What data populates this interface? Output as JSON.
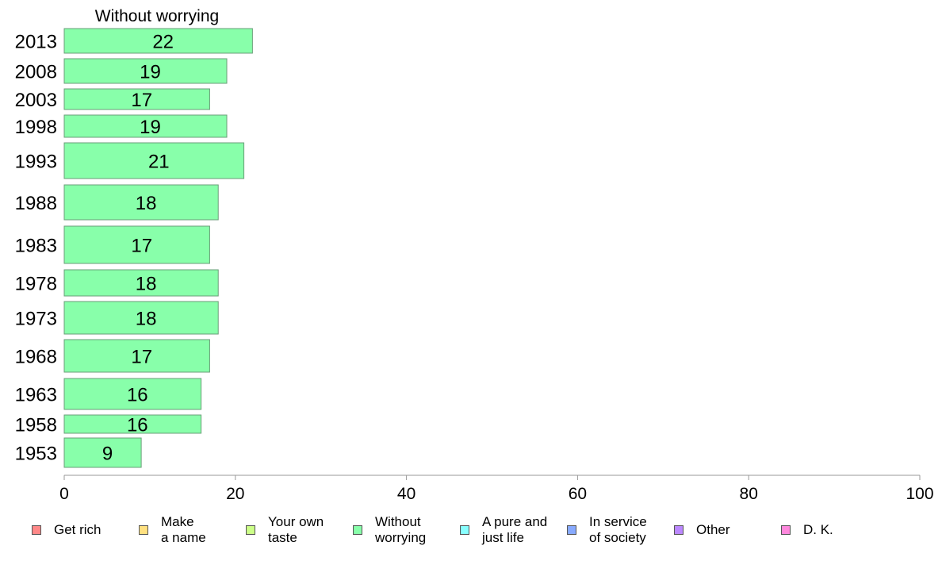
{
  "chart_data": {
    "type": "bar",
    "orientation": "horizontal",
    "title": "Without worrying",
    "categories": [
      "2013",
      "2008",
      "2003",
      "1998",
      "1993",
      "1988",
      "1983",
      "1978",
      "1973",
      "1968",
      "1963",
      "1958",
      "1953"
    ],
    "values": [
      22,
      19,
      17,
      19,
      21,
      18,
      17,
      18,
      18,
      17,
      16,
      16,
      9
    ],
    "xlim": [
      0,
      100
    ],
    "xticks": [
      "0",
      "20",
      "40",
      "60",
      "80",
      "100"
    ],
    "bar_color": "#88ffaa",
    "grid": false,
    "legend_position": "bottom",
    "legend": [
      {
        "label": "Get rich",
        "color": "#ff8888"
      },
      {
        "label": "Make\na name",
        "color": "#ffe080"
      },
      {
        "label": "Your own\ntaste",
        "color": "#ccff88"
      },
      {
        "label": "Without\nworrying",
        "color": "#88ffaa"
      },
      {
        "label": "A pure and\njust life",
        "color": "#88ffff"
      },
      {
        "label": "In service\nof society",
        "color": "#88aaff"
      },
      {
        "label": "Other",
        "color": "#bb88ff"
      },
      {
        "label": "D. K.",
        "color": "#ff88dd"
      }
    ]
  }
}
